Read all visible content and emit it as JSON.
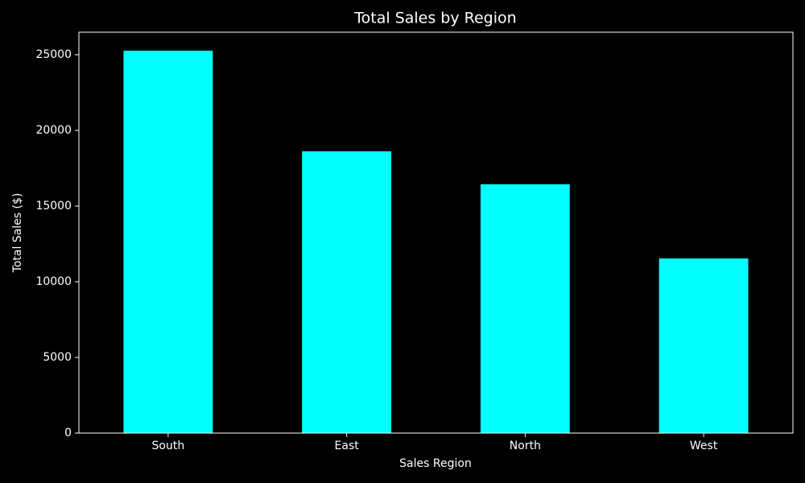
{
  "chart_data": {
    "type": "bar",
    "title": "Total Sales by Region",
    "x_label": "Sales Region",
    "y_label": "Total Sales ($)",
    "categories": [
      "South",
      "East",
      "North",
      "West"
    ],
    "values": [
      25270,
      18620,
      16440,
      11540
    ],
    "color": "#00ffff",
    "ylim": [
      0,
      26490
    ],
    "yticks": [
      0,
      5000,
      10000,
      15000,
      20000,
      25000
    ],
    "grid": false
  }
}
